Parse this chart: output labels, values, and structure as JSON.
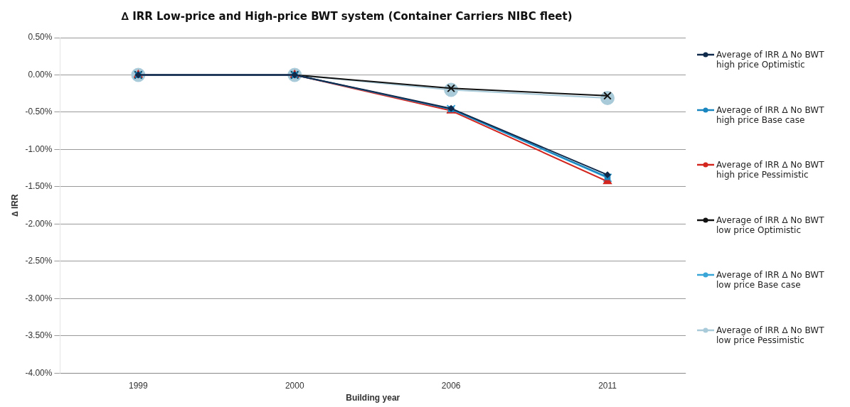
{
  "chart_data": {
    "type": "line",
    "title": "∆ IRR Low-price and High-price BWT system (Container Carriers NIBC fleet)",
    "xlabel": "Building year",
    "ylabel": "∆ IRR",
    "categories": [
      "1999",
      "2000",
      "2006",
      "2011"
    ],
    "series": [
      {
        "name": "Average of IRR ∆ No BWT high price Optimistic",
        "color": "#102a4c",
        "marker": "diamond",
        "values": [
          0,
          0,
          -0.45,
          -1.34
        ]
      },
      {
        "name": "Average of IRR ∆ No BWT high price Base case",
        "color": "#1a86c0",
        "marker": "square",
        "values": [
          0,
          0,
          -0.46,
          -1.37
        ]
      },
      {
        "name": "Average of IRR ∆ No BWT high price Pessimistic",
        "color": "#d2261f",
        "marker": "triangle",
        "values": [
          0,
          0,
          -0.48,
          -1.43
        ]
      },
      {
        "name": "Average of IRR ∆ No BWT low price Optimistic",
        "color": "#111111",
        "marker": "cross",
        "values": [
          0,
          0,
          -0.18,
          -0.28
        ]
      },
      {
        "name": "Average of IRR ∆ No BWT low price Base case",
        "color": "#3aa6d8",
        "marker": "cross",
        "values": [
          0,
          0,
          -0.46,
          -1.38
        ]
      },
      {
        "name": "Average of IRR ∆ No BWT low price Pessimistic",
        "color": "#a9cbd9",
        "marker": "circle",
        "values": [
          0,
          0,
          -0.2,
          -0.31
        ]
      }
    ],
    "ylim": [
      -4,
      0.5
    ],
    "yticks": [
      {
        "value": 0.5,
        "label": "0.50%"
      },
      {
        "value": 0,
        "label": "0.00%"
      },
      {
        "value": -0.5,
        "label": "-0.50%"
      },
      {
        "value": -1,
        "label": "-1.00%"
      },
      {
        "value": -1.5,
        "label": "-1.50%"
      },
      {
        "value": -2,
        "label": "-2.00%"
      },
      {
        "value": -2.5,
        "label": "-2.50%"
      },
      {
        "value": -3,
        "label": "-3.00%"
      },
      {
        "value": -3.5,
        "label": "-3.50%"
      },
      {
        "value": -4,
        "label": "-4.00%"
      }
    ],
    "grid": "y",
    "legend": "right",
    "line_style": "solid"
  }
}
